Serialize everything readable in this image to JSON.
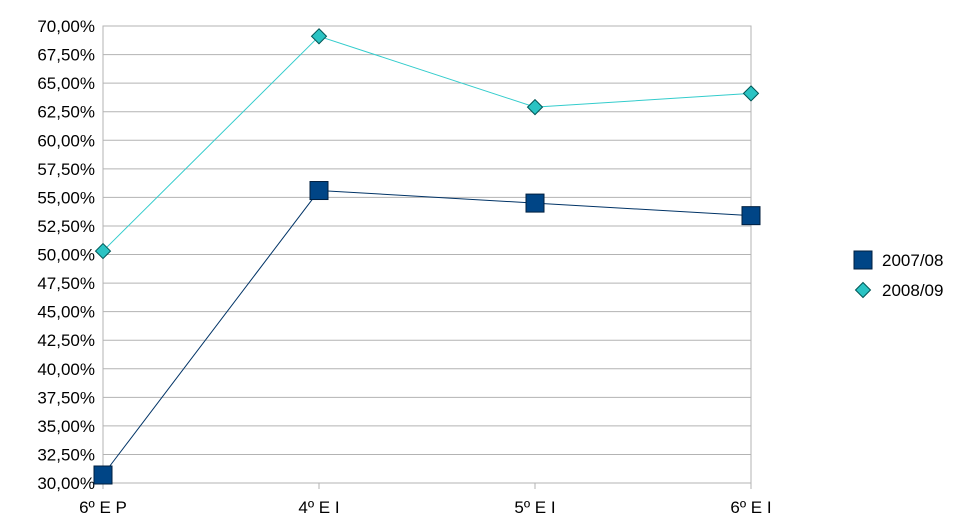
{
  "chart_data": {
    "type": "line",
    "title": "",
    "xlabel": "",
    "ylabel": "",
    "categories": [
      "6º E P",
      "4º E I",
      "5º E I",
      "6º E I"
    ],
    "ylim": [
      30,
      70
    ],
    "ytick_step": 2.5,
    "ytick_format": "percent-comma-2",
    "grid": "horizontal",
    "legend_position": "right",
    "series": [
      {
        "name": "2007/08",
        "values": [
          30.7,
          55.6,
          54.5,
          53.4
        ],
        "marker": "square",
        "line_color": "#003366",
        "marker_fill": "#004586",
        "marker_stroke": "#001f3f"
      },
      {
        "name": "2008/09",
        "values": [
          50.3,
          69.1,
          62.9,
          64.1
        ],
        "marker": "diamond",
        "line_color": "#33cccc",
        "marker_fill": "#2ac3c3",
        "marker_stroke": "#005555"
      }
    ]
  }
}
